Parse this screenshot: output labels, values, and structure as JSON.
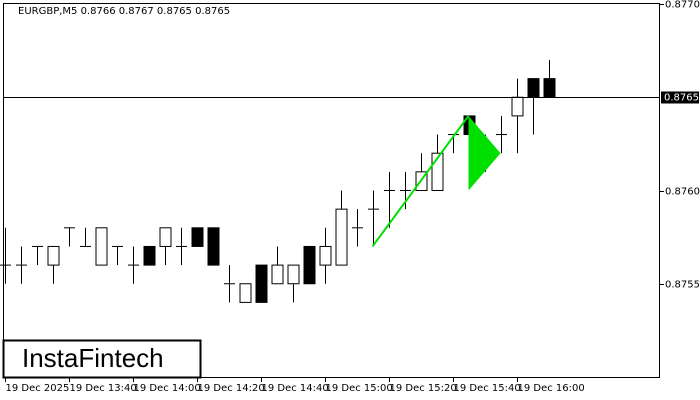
{
  "chart_data": {
    "type": "candlestick",
    "title": "EURGBP,M5  0.8766 0.8767 0.8765 0.8765",
    "watermark": "InstaFintech",
    "categories": [
      "19 Dec 2025",
      null,
      null,
      null,
      "19 Dec 13:40",
      null,
      null,
      null,
      "19 Dec 14:00",
      null,
      null,
      null,
      "19 Dec 14:20",
      null,
      null,
      null,
      "19 Dec 14:40",
      null,
      null,
      null,
      "19 Dec 15:00",
      null,
      null,
      null,
      "19 Dec 15:20",
      null,
      null,
      null,
      "19 Dec 15:40",
      null,
      null,
      null,
      "19 Dec 16:00",
      null,
      null
    ],
    "open": [
      0.8756,
      0.8756,
      0.8757,
      0.8756,
      0.8758,
      0.8757,
      0.8756,
      0.8757,
      0.8756,
      0.8757,
      0.8757,
      0.8757,
      0.8758,
      0.8758,
      0.8755,
      0.8754,
      0.8756,
      0.8755,
      0.8755,
      0.8757,
      0.8756,
      0.8756,
      0.8758,
      0.8759,
      0.876,
      0.876,
      0.876,
      0.876,
      0.8763,
      0.8764,
      0.8762,
      0.8763,
      0.8764,
      0.8766,
      0.8766
    ],
    "high": [
      0.8758,
      0.8757,
      0.8757,
      0.8757,
      0.8758,
      0.8758,
      0.8758,
      0.8757,
      0.8757,
      0.8757,
      0.8758,
      0.8758,
      0.8758,
      0.8758,
      0.8756,
      0.8755,
      0.8756,
      0.8757,
      0.8756,
      0.8757,
      0.8758,
      0.876,
      0.8759,
      0.876,
      0.8761,
      0.8761,
      0.8762,
      0.8763,
      0.8763,
      0.8764,
      0.8763,
      0.8764,
      0.8766,
      0.8766,
      0.8767
    ],
    "low": [
      0.8755,
      0.8755,
      0.8756,
      0.8755,
      0.8757,
      0.8757,
      0.8756,
      0.8756,
      0.8755,
      0.8756,
      0.8756,
      0.8756,
      0.8757,
      0.8756,
      0.8754,
      0.8754,
      0.8754,
      0.8755,
      0.8754,
      0.8755,
      0.8755,
      0.8756,
      0.8757,
      0.8757,
      0.8758,
      0.8759,
      0.876,
      0.876,
      0.8762,
      0.8763,
      0.8761,
      0.8762,
      0.8762,
      0.8763,
      0.8765
    ],
    "close": [
      0.8756,
      0.8756,
      0.8757,
      0.8757,
      0.8758,
      0.8757,
      0.8758,
      0.8757,
      0.8756,
      0.8756,
      0.8758,
      0.8757,
      0.8757,
      0.8756,
      0.8755,
      0.8755,
      0.8754,
      0.8756,
      0.8756,
      0.8755,
      0.8757,
      0.8759,
      0.8758,
      0.8759,
      0.876,
      0.876,
      0.8761,
      0.8762,
      0.8763,
      0.8763,
      0.8762,
      0.8763,
      0.8765,
      0.8765,
      0.8765
    ],
    "up_color": "#ffffff",
    "down_color": "#000000",
    "ylim": [
      0.875,
      0.877
    ],
    "yticks": [
      {
        "value": 0.877,
        "label": "0.8770"
      },
      {
        "value": 0.876,
        "label": "0.8760"
      },
      0.8755
    ],
    "last_price": 0.8765,
    "pattern": {
      "color": "#00e000",
      "pole": [
        [
          23,
          0.8757
        ],
        [
          29,
          0.8764
        ]
      ],
      "flag": [
        [
          29,
          0.8764
        ],
        [
          29,
          0.876
        ],
        [
          31,
          0.8762
        ]
      ]
    }
  }
}
